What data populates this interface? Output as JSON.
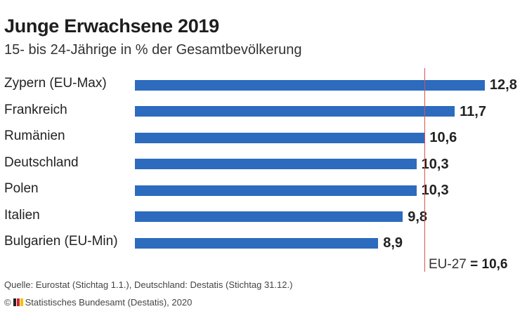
{
  "header": {
    "title": "Junge Erwachsene 2019",
    "subtitle": "15- bis 24-Jährige in % der Gesamtbevölkerung"
  },
  "chart_data": {
    "type": "bar",
    "orientation": "horizontal",
    "title": "Junge Erwachsene 2019",
    "subtitle": "15- bis 24-Jährige in % der Gesamtbevölkerung",
    "categories": [
      "Zypern (EU-Max)",
      "Frankreich",
      "Rumänien",
      "Deutschland",
      "Polen",
      "Italien",
      "Bulgarien (EU-Min)"
    ],
    "values": [
      12.8,
      11.7,
      10.6,
      10.3,
      10.3,
      9.8,
      8.9
    ],
    "value_labels": [
      "12,8",
      "11,7",
      "10,6",
      "10,3",
      "10,3",
      "9,8",
      "8,9"
    ],
    "reference_line": {
      "label_prefix": "EU-27",
      "label_value": "= 10,6",
      "value": 10.6
    },
    "grid": false,
    "bar_color": "#2c6bbd",
    "reference_color": "#d9534f"
  },
  "footer": {
    "source": "Quelle: Eurostat (Stichtag 1.1.), Deutschland: Destatis (Stichtag 31.12.)",
    "copyright_symbol": "©",
    "copyright": "Statistisches Bundesamt (Destatis), 2020"
  }
}
